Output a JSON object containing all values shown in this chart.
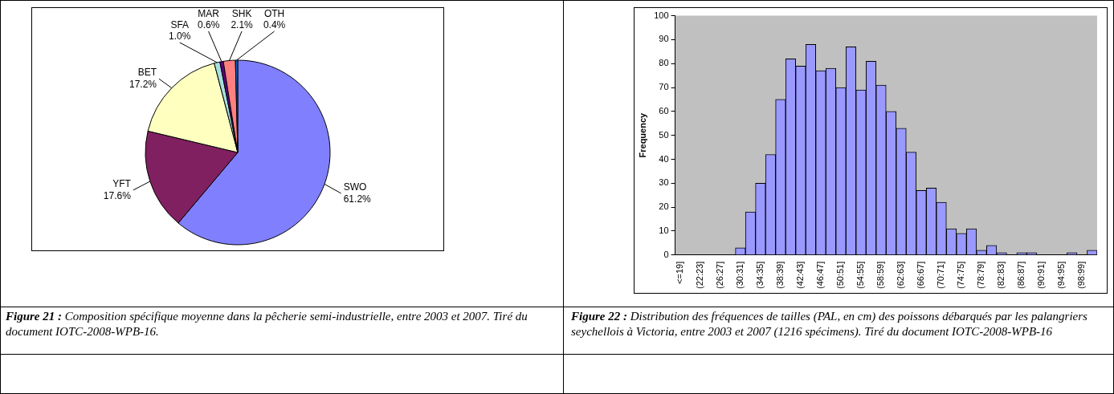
{
  "chart_data": [
    {
      "type": "pie",
      "categories": [
        "SWO",
        "YFT",
        "BET",
        "SFA",
        "MAR",
        "SHK",
        "OTH"
      ],
      "values": [
        61.2,
        17.6,
        17.2,
        1.0,
        0.6,
        2.1,
        0.4
      ],
      "colors": [
        "#8080ff",
        "#802060",
        "#ffffc0",
        "#a6e0e0",
        "#600080",
        "#ff8080",
        "#0066cc"
      ],
      "value_labels": [
        "61.2%",
        "17.6%",
        "17.2%",
        "1.0%",
        "0.6%",
        "2.1%",
        "0.4%"
      ],
      "legend": false,
      "annotations": [
        "Figure 21 :  Composition spécifique moyenne dans la pêcherie semi-industrielle, entre 2003 et 2007. Tiré du document IOTC-2008-WPB-16."
      ]
    },
    {
      "type": "bar",
      "ylabel": "Frequency",
      "categories": [
        "<=19]",
        null,
        "(22:23]",
        null,
        "(26:27]",
        null,
        "(30:31]",
        null,
        "(34:35]",
        null,
        "(38:39]",
        null,
        "(42:43]",
        null,
        "(46:47]",
        null,
        "(50:51]",
        null,
        "(54:55]",
        null,
        "(58:59]",
        null,
        "(62:63]",
        null,
        "(66:67]",
        null,
        "(70:71]",
        null,
        "(74:75]",
        null,
        "(78:79]",
        null,
        "(82:83]",
        null,
        "(86:87]",
        null,
        "(90:91]",
        null,
        "(94:95]",
        null,
        "(98:99]",
        null
      ],
      "values": [
        0,
        0,
        0,
        0,
        0,
        0,
        3,
        18,
        30,
        42,
        65,
        82,
        79,
        88,
        77,
        78,
        70,
        87,
        69,
        81,
        71,
        60,
        53,
        43,
        27,
        28,
        22,
        11,
        9,
        11,
        2,
        4,
        1,
        0,
        1,
        1,
        0,
        0,
        0,
        1,
        0,
        2
      ],
      "color": "#9999ff",
      "ylim": [
        0,
        100
      ],
      "yticks": [
        0,
        10,
        20,
        30,
        40,
        50,
        60,
        70,
        80,
        90,
        100
      ],
      "grid": false,
      "legend": false,
      "annotations": [
        "Figure 22 : Distribution des fréquences de tailles (PAL, en cm) des poissons débarqués par les palangriers seychellois à Victoria, entre 2003 et 2007 (1216 spécimens). Tiré du document IOTC-2008-WPB-16"
      ]
    }
  ]
}
